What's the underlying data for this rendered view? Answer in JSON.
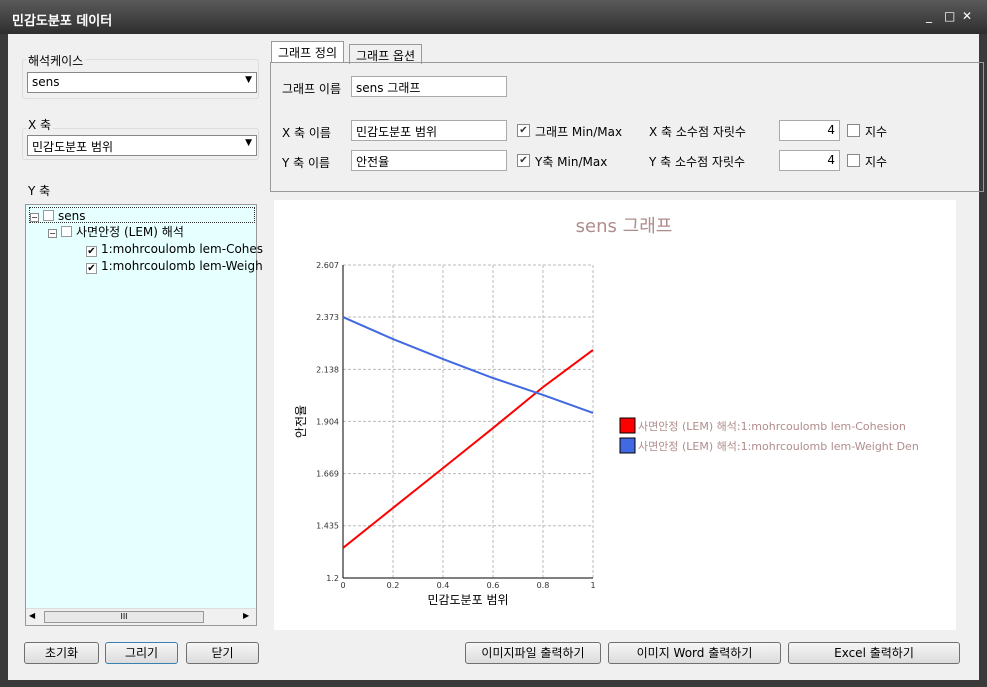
{
  "window": {
    "title": "민감도분포 데이터",
    "minimize": "_",
    "maximize": "□",
    "close": "✕"
  },
  "left": {
    "case_label": "해석케이스",
    "case_value": "sens",
    "x_label": "X 축",
    "x_value": "민감도분포 범위",
    "y_label": "Y 축",
    "tree": {
      "root": "sens",
      "child": "사면안정 (LEM) 해석",
      "leaves": [
        "1:mohrcoulomb lem-Cohes",
        "1:mohrcoulomb lem-Weigh"
      ]
    },
    "scroll_grip": "III"
  },
  "tabs": [
    "그래프 정의",
    "그래프 옵션"
  ],
  "form": {
    "graph_name_label": "그래프 이름",
    "graph_name": "sens 그래프",
    "x_name_label": "X 축 이름",
    "x_name": "민감도분포 범위",
    "y_name_label": "Y 축 이름",
    "y_name": "안전율",
    "graph_minmax": "그래프 Min/Max",
    "y_minmax": "Y축 Min/Max",
    "x_decimal_label": "X 축 소수점 자릿수",
    "x_decimal": "4",
    "y_decimal_label": "Y 축 소수점 자릿수",
    "y_decimal": "4",
    "exponent": "지수"
  },
  "buttons": {
    "reset": "초기화",
    "draw": "그리기",
    "close": "닫기",
    "export_image": "이미지파일 출력하기",
    "export_word": "이미지 Word 출력하기",
    "export_excel": "Excel 출력하기"
  },
  "chart_data": {
    "type": "line",
    "title": "sens 그래프",
    "xlabel": "민감도분포 범위",
    "ylabel": "안전율",
    "xlim": [
      0,
      1
    ],
    "ylim": [
      1.2,
      2.607
    ],
    "x_ticks": [
      "0",
      "0.2",
      "0.4",
      "0.6",
      "0.8",
      "1"
    ],
    "y_ticks": [
      "1.2",
      "1.435",
      "1.669",
      "1.904",
      "2.138",
      "2.373",
      "2.607"
    ],
    "grid": true,
    "legend": "right",
    "x": [
      0,
      0.2,
      0.4,
      0.6,
      0.8,
      1
    ],
    "series": [
      {
        "name": "사면안정 (LEM) 해석:1:mohrcoulomb lem-Cohesion",
        "color": "#ff0000",
        "values": [
          1.335,
          1.515,
          1.694,
          1.874,
          2.058,
          2.225
        ]
      },
      {
        "name": "사면안정 (LEM) 해석:1:mohrcoulomb lem-Weight Den",
        "color": "#4169e1",
        "values": [
          2.373,
          2.274,
          2.184,
          2.099,
          2.023,
          1.942
        ]
      }
    ]
  }
}
